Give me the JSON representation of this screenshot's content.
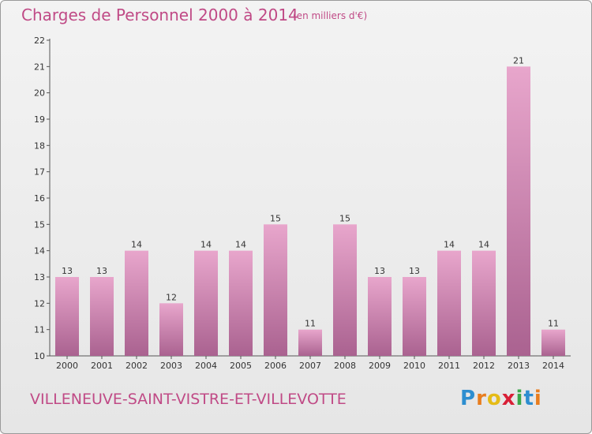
{
  "header": {
    "title": "Charges de Personnel 2000 à 2014",
    "subtitle": "(en milliers d'€)"
  },
  "footer": {
    "commune": "VILLENEUVE-SAINT-VISTRE-ET-VILLEVOTTE",
    "logo": {
      "letters": [
        "P",
        "r",
        "o",
        "x",
        "i",
        "t",
        "i"
      ],
      "colors": [
        "#2d8ed0",
        "#e87d1e",
        "#e5bb16",
        "#d81f36",
        "#3aa84a",
        "#2d8ed0",
        "#e87d1e"
      ]
    }
  },
  "colors": {
    "bar_top": "#e8a6cc",
    "bar_bottom": "#aa6290",
    "text": "#c04a86"
  },
  "chart_data": {
    "type": "bar",
    "categories": [
      "2000",
      "2001",
      "2002",
      "2003",
      "2004",
      "2005",
      "2006",
      "2007",
      "2008",
      "2009",
      "2010",
      "2011",
      "2012",
      "2013",
      "2014"
    ],
    "values": [
      13,
      13,
      14,
      12,
      14,
      14,
      15,
      11,
      15,
      13,
      13,
      14,
      14,
      21,
      11
    ],
    "data_labels": [
      "13",
      "13",
      "14",
      "12",
      "14",
      "14",
      "15",
      "11",
      "15",
      "13",
      "13",
      "14",
      "14",
      "21",
      "11"
    ],
    "y_ticks": [
      "10",
      "11",
      "12",
      "13",
      "14",
      "15",
      "16",
      "17",
      "18",
      "19",
      "20",
      "21",
      "22"
    ],
    "ylim": [
      10,
      22
    ],
    "title": "Charges de Personnel 2000 à 2014",
    "subtitle": "(en milliers d'€)",
    "xlabel": "",
    "ylabel": "",
    "grid": false,
    "legend": "none"
  }
}
